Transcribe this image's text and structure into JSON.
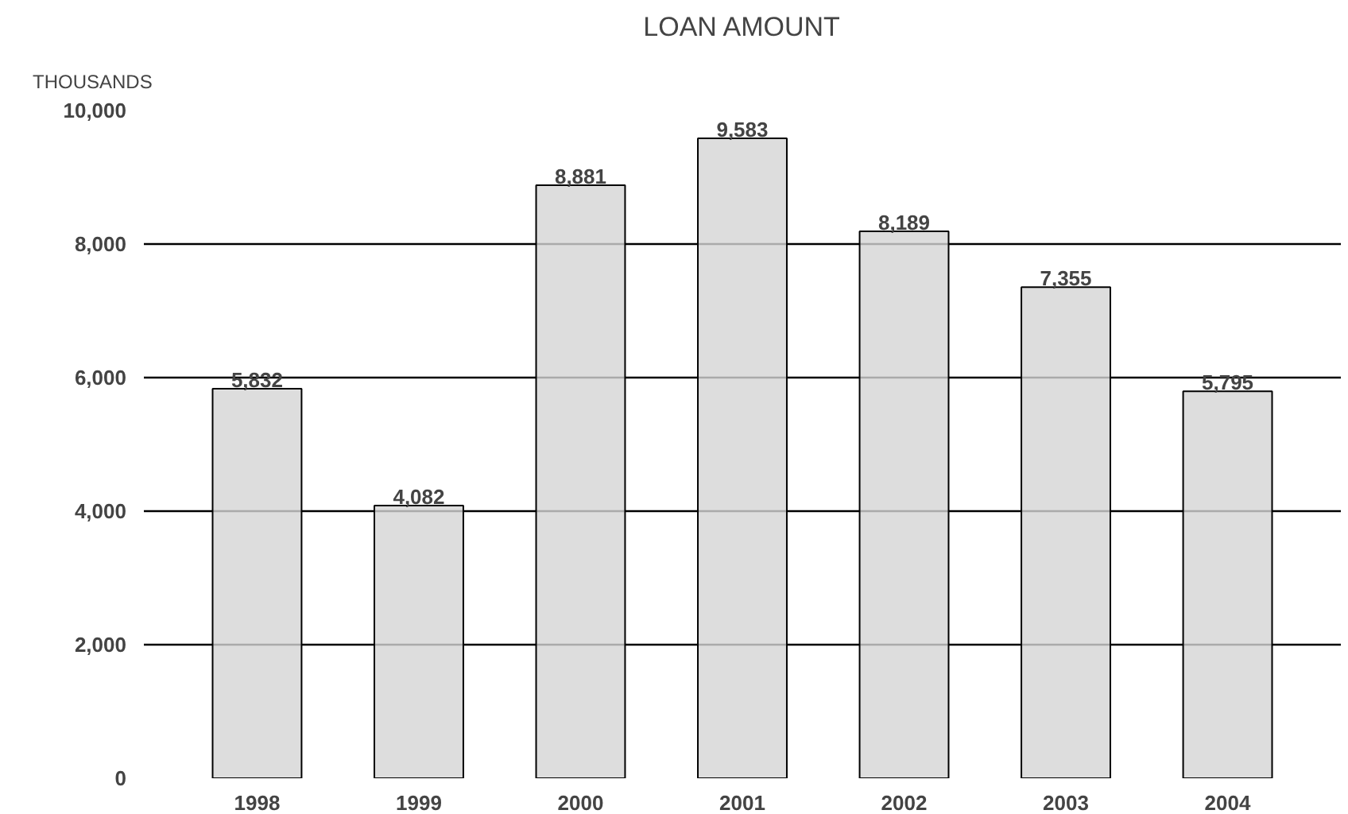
{
  "chart_data": {
    "type": "bar",
    "title": "LOAN AMOUNT",
    "ylabel": "THOUSANDS",
    "categories": [
      "1998",
      "1999",
      "2000",
      "2001",
      "2002",
      "2003",
      "2004"
    ],
    "values": [
      5832,
      4082,
      8881,
      9583,
      8189,
      7355,
      5795
    ],
    "color": "#d4d4d4",
    "ylim": [
      0,
      10000
    ],
    "yticks": [
      0,
      {
        "value": 2000,
        "label": "2,000"
      },
      {
        "value": 4000,
        "label": "4,000"
      },
      {
        "value": 6000,
        "label": "6,000"
      },
      {
        "value": 8000,
        "label": "8,000"
      },
      {
        "value": 10000,
        "label": "10,000"
      }
    ],
    "grid": "y",
    "data_labels": true,
    "value_labels": [
      "5,832",
      "4,082",
      "8,881",
      "9,583",
      "8,189",
      "7,355",
      "5,795"
    ]
  }
}
